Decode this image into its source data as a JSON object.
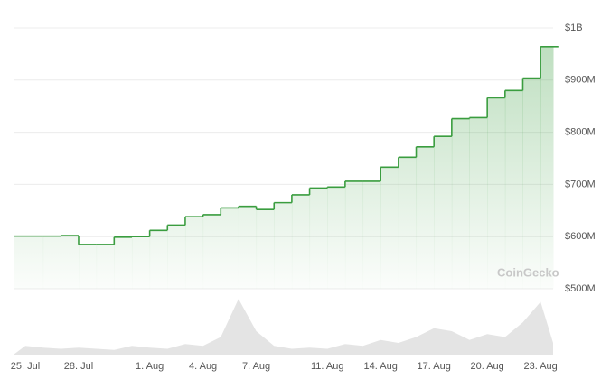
{
  "chart_data": {
    "type": "step-area",
    "watermark": "CoinGecko",
    "categories": [
      "25. Jul",
      null,
      null,
      "28. Jul",
      null,
      null,
      null,
      "1. Aug",
      null,
      null,
      "4. Aug",
      null,
      null,
      "7. Aug",
      null,
      null,
      null,
      "11. Aug",
      null,
      null,
      "14. Aug",
      null,
      null,
      "17. Aug",
      null,
      null,
      "20. Aug",
      null,
      null,
      "23. Aug",
      null
    ],
    "values": [
      601000000,
      601000000,
      602000000,
      585000000,
      585000000,
      599000000,
      600000000,
      612000000,
      622000000,
      638000000,
      642000000,
      655000000,
      658000000,
      652000000,
      665000000,
      680000000,
      693000000,
      695000000,
      706000000,
      706000000,
      733000000,
      752000000,
      772000000,
      792000000,
      826000000,
      828000000,
      866000000,
      880000000,
      904000000,
      964000000,
      964000000
    ],
    "volume": [
      15,
      12,
      10,
      12,
      10,
      8,
      15,
      12,
      10,
      18,
      15,
      30,
      95,
      40,
      15,
      10,
      12,
      10,
      18,
      15,
      25,
      20,
      30,
      45,
      40,
      25,
      35,
      30,
      55,
      90,
      20
    ],
    "color": "#3a9d3f",
    "volume_color": "#e4e4e4",
    "ylim": [
      500000000,
      1000000000
    ],
    "yticks": [
      {
        "value": 500000000,
        "label": "$500M"
      },
      {
        "value": 600000000,
        "label": "$600M"
      },
      {
        "value": 700000000,
        "label": "$700M"
      },
      {
        "value": 800000000,
        "label": "$800M"
      },
      {
        "value": 900000000,
        "label": "$900M"
      },
      {
        "value": 1000000000,
        "label": "$1B"
      }
    ],
    "grid": true
  }
}
